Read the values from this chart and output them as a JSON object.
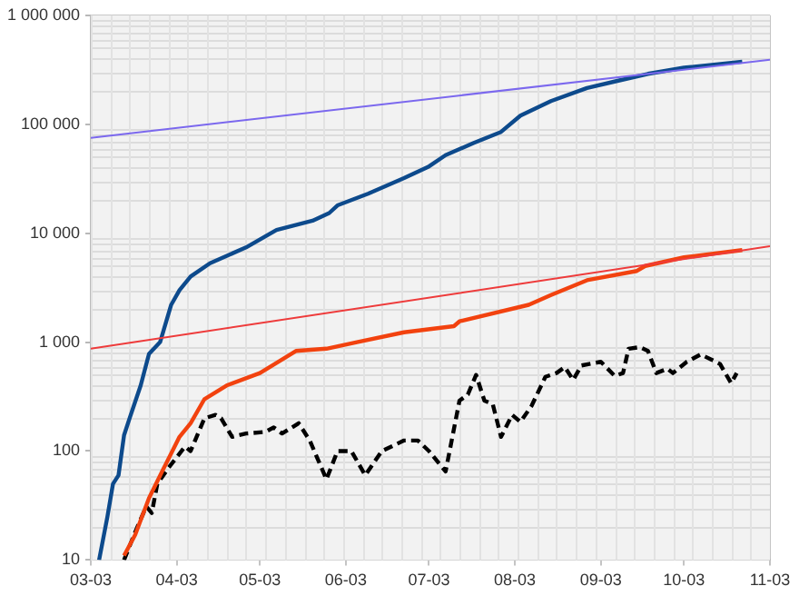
{
  "chart_data": {
    "type": "line",
    "log": "y",
    "grid": true,
    "legend": false,
    "marker": "none",
    "xlim": [
      "--03-03",
      "--11-03"
    ],
    "xticks": [
      {
        "value": "--03-03",
        "label": "03-03"
      },
      {
        "value": "--04-03",
        "label": "04-03"
      },
      {
        "value": "--05-03",
        "label": "05-03"
      },
      {
        "value": "--06-03",
        "label": "06-03"
      },
      {
        "value": "--07-03",
        "label": "07-03"
      },
      {
        "value": "--08-03",
        "label": "08-03"
      },
      {
        "value": "--09-03",
        "label": "09-03"
      },
      {
        "value": "--10-03",
        "label": "10-03"
      },
      {
        "value": "--11-03",
        "label": "11-03"
      }
    ],
    "ylim": [
      10,
      1000000
    ],
    "yticks": [
      {
        "value": 10,
        "label": "10"
      },
      {
        "value": 100,
        "label": "100"
      },
      {
        "value": 1000,
        "label": "1 000"
      },
      {
        "value": 10000,
        "label": "10 000"
      },
      {
        "value": 100000,
        "label": "100 000"
      },
      {
        "value": 1000000,
        "label": "1 000 000"
      }
    ],
    "series": [
      {
        "color": "#7b68ee",
        "line_style": "solid",
        "x": [
          "--03-03",
          "--11-03"
        ],
        "values": [
          75000,
          390000
        ]
      },
      {
        "color": "#ee3b3b",
        "line_style": "solid",
        "x": [
          "--03-03",
          "--11-03"
        ],
        "values": [
          870,
          7600
        ]
      },
      {
        "color": "#0d4a8c",
        "line_style": "solid",
        "x": [
          "--03-06",
          "--03-09",
          "--03-11",
          "--03-13",
          "--03-15",
          "--03-17",
          "--03-21",
          "--03-24",
          "--03-28",
          "--04-01",
          "--04-04",
          "--04-08",
          "--04-15",
          "--04-28",
          "--05-09",
          "--05-22",
          "--05-28",
          "--05-31",
          "--06-11",
          "--06-24",
          "--07-03",
          "--07-09",
          "--07-19",
          "--07-29",
          "--08-05",
          "--08-16",
          "--08-29",
          "--09-09",
          "--09-20",
          "--10-03",
          "--10-24"
        ],
        "values": [
          10,
          25,
          50,
          60,
          140,
          200,
          400,
          780,
          1000,
          2200,
          3000,
          4000,
          5300,
          7400,
          10700,
          13000,
          15300,
          18000,
          23000,
          32000,
          41000,
          52000,
          67000,
          85000,
          120000,
          163000,
          215000,
          250000,
          290000,
          330000,
          375000
        ]
      },
      {
        "color": "#f2420f",
        "line_style": "solid",
        "x": [
          "--03-15",
          "--03-19",
          "--03-24",
          "--03-29",
          "--04-04",
          "--04-08",
          "--04-13",
          "--04-21",
          "--05-03",
          "--05-16",
          "--05-27",
          "--06-07",
          "--06-24",
          "--07-12",
          "--07-14",
          "--08-08",
          "--08-16",
          "--08-29",
          "--09-16",
          "--09-19",
          "--10-03",
          "--10-24"
        ],
        "values": [
          11,
          17,
          37,
          67,
          135,
          180,
          300,
          400,
          520,
          830,
          870,
          1000,
          1230,
          1400,
          1550,
          2200,
          2700,
          3700,
          4500,
          5000,
          6000,
          7000
        ]
      },
      {
        "color": "#000000",
        "line_style": "dashed",
        "x": [
          "--03-15",
          "--03-19",
          "--03-23",
          "--03-25",
          "--03-27",
          "--03-31",
          "--04-06",
          "--04-08",
          "--04-13",
          "--04-17",
          "--04-19",
          "--04-23",
          "--04-28",
          "--05-05",
          "--05-08",
          "--05-11",
          "--05-17",
          "--05-21",
          "--05-27",
          "--05-31",
          "--06-05",
          "--06-10",
          "--06-16",
          "--06-24",
          "--06-29",
          "--07-03",
          "--07-09",
          "--07-14",
          "--07-17",
          "--07-20",
          "--07-23",
          "--07-26",
          "--07-29",
          "--08-02",
          "--08-05",
          "--08-09",
          "--08-14",
          "--08-18",
          "--08-21",
          "--08-24",
          "--08-27",
          "--09-03",
          "--09-08",
          "--09-11",
          "--09-13",
          "--09-17",
          "--09-20",
          "--09-23",
          "--09-27",
          "--09-29",
          "--10-04",
          "--10-09",
          "--10-13",
          "--10-16",
          "--10-20",
          "--10-22"
        ],
        "values": [
          10,
          18,
          31,
          27,
          50,
          70,
          110,
          100,
          200,
          215,
          200,
          135,
          145,
          150,
          165,
          145,
          180,
          125,
          55,
          100,
          100,
          60,
          100,
          125,
          125,
          100,
          65,
          290,
          330,
          500,
          290,
          270,
          135,
          215,
          185,
          260,
          480,
          520,
          590,
          450,
          610,
          660,
          490,
          520,
          870,
          900,
          830,
          520,
          570,
          520,
          660,
          770,
          690,
          630,
          420,
          520
        ]
      }
    ]
  }
}
